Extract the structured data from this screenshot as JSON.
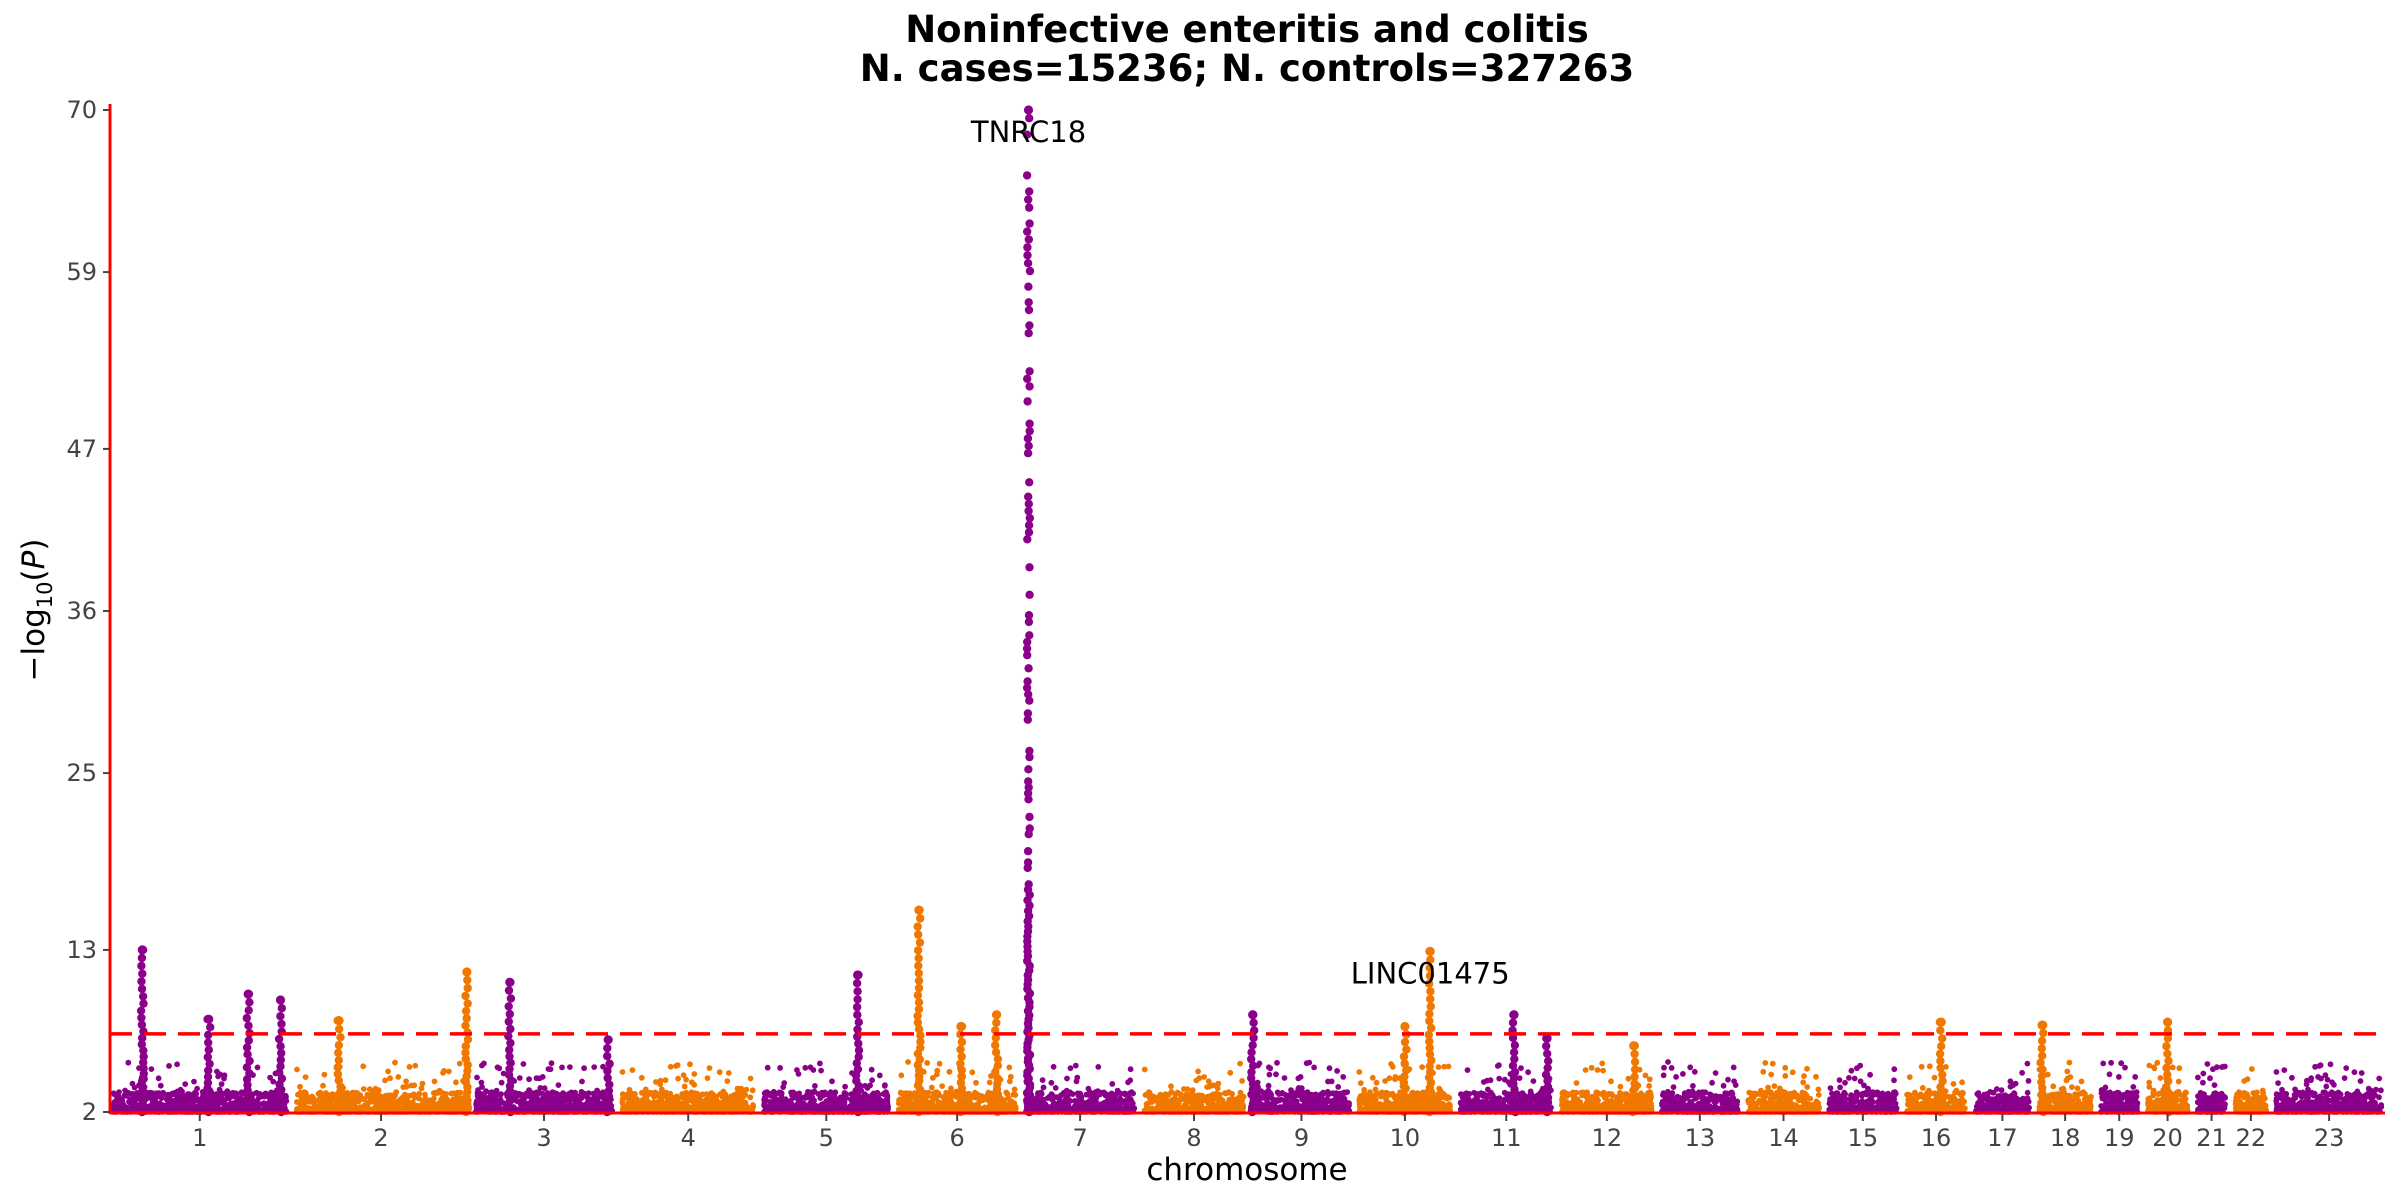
{
  "chart_data": {
    "type": "scatter",
    "subtype": "manhattan",
    "title": "Noninfective enteritis and colitis",
    "subtitle": "N. cases=15236; N. controls=327263",
    "xlabel": "chromosome",
    "ylabel": "−log10(P)",
    "ylim": [
      2,
      70
    ],
    "yticks": [
      2,
      13,
      25,
      36,
      47,
      59,
      70
    ],
    "significance_threshold": 7.3,
    "colors": {
      "odd_chromosomes": "#8B008B",
      "even_chromosomes": "#F07800",
      "threshold": "#FF0000",
      "axis": "#FF0000"
    },
    "chromosomes": [
      {
        "label": "1",
        "size": 249,
        "color": "#8B008B",
        "peaks": [
          {
            "pos": 0.18,
            "p": 13
          },
          {
            "pos": 0.55,
            "p": 8.3
          },
          {
            "pos": 0.77,
            "p": 10
          },
          {
            "pos": 0.95,
            "p": 9.6
          }
        ]
      },
      {
        "label": "2",
        "size": 243,
        "color": "#F07800",
        "peaks": [
          {
            "pos": 0.26,
            "p": 8.2
          },
          {
            "pos": 0.99,
            "p": 11.5
          }
        ]
      },
      {
        "label": "3",
        "size": 198,
        "color": "#8B008B",
        "peaks": [
          {
            "pos": 0.26,
            "p": 10.8
          },
          {
            "pos": 0.95,
            "p": 6.9
          }
        ]
      },
      {
        "label": "4",
        "size": 191,
        "color": "#F07800",
        "peaks": []
      },
      {
        "label": "5",
        "size": 181,
        "color": "#8B008B",
        "peaks": [
          {
            "pos": 0.74,
            "p": 11.3
          }
        ]
      },
      {
        "label": "6",
        "size": 171,
        "color": "#F07800",
        "peaks": [
          {
            "pos": 0.19,
            "p": 15.7
          },
          {
            "pos": 0.53,
            "p": 7.8
          },
          {
            "pos": 0.82,
            "p": 8.6
          }
        ]
      },
      {
        "label": "7",
        "size": 159,
        "color": "#8B008B",
        "peaks": [
          {
            "pos": 0.05,
            "p": 70
          }
        ]
      },
      {
        "label": "8",
        "size": 146,
        "color": "#F07800",
        "peaks": []
      },
      {
        "label": "9",
        "size": 141,
        "color": "#8B008B",
        "peaks": [
          {
            "pos": 0.02,
            "p": 8.6
          }
        ]
      },
      {
        "label": "10",
        "size": 135,
        "color": "#F07800",
        "peaks": [
          {
            "pos": 0.5,
            "p": 7.8
          },
          {
            "pos": 0.76,
            "p": 12.9
          }
        ]
      },
      {
        "label": "11",
        "size": 135,
        "color": "#8B008B",
        "peaks": [
          {
            "pos": 0.58,
            "p": 8.6
          },
          {
            "pos": 0.92,
            "p": 7
          }
        ]
      },
      {
        "label": "12",
        "size": 133,
        "color": "#F07800",
        "peaks": [
          {
            "pos": 0.78,
            "p": 6.5
          }
        ]
      },
      {
        "label": "13",
        "size": 114,
        "color": "#8B008B",
        "peaks": []
      },
      {
        "label": "14",
        "size": 107,
        "color": "#F07800",
        "peaks": []
      },
      {
        "label": "15",
        "size": 102,
        "color": "#8B008B",
        "peaks": []
      },
      {
        "label": "16",
        "size": 90,
        "color": "#F07800",
        "peaks": [
          {
            "pos": 0.58,
            "p": 8.1
          }
        ]
      },
      {
        "label": "17",
        "size": 83,
        "color": "#8B008B",
        "peaks": []
      },
      {
        "label": "18",
        "size": 80,
        "color": "#F07800",
        "peaks": [
          {
            "pos": 0.1,
            "p": 7.9
          }
        ]
      },
      {
        "label": "19",
        "size": 59,
        "color": "#8B008B",
        "peaks": []
      },
      {
        "label": "20",
        "size": 64,
        "color": "#F07800",
        "peaks": [
          {
            "pos": 0.5,
            "p": 8.1
          }
        ]
      },
      {
        "label": "21",
        "size": 47,
        "color": "#8B008B",
        "peaks": []
      },
      {
        "label": "22",
        "size": 51,
        "color": "#F07800",
        "peaks": []
      },
      {
        "label": "23",
        "size": 155,
        "color": "#8B008B",
        "peaks": []
      }
    ],
    "annotations": [
      {
        "text": "TNRC18",
        "chromosome": "7",
        "pos": 0.05,
        "p": 70
      },
      {
        "text": "LINC01475",
        "chromosome": "10",
        "pos": 0.76,
        "p": 12.9
      }
    ]
  }
}
